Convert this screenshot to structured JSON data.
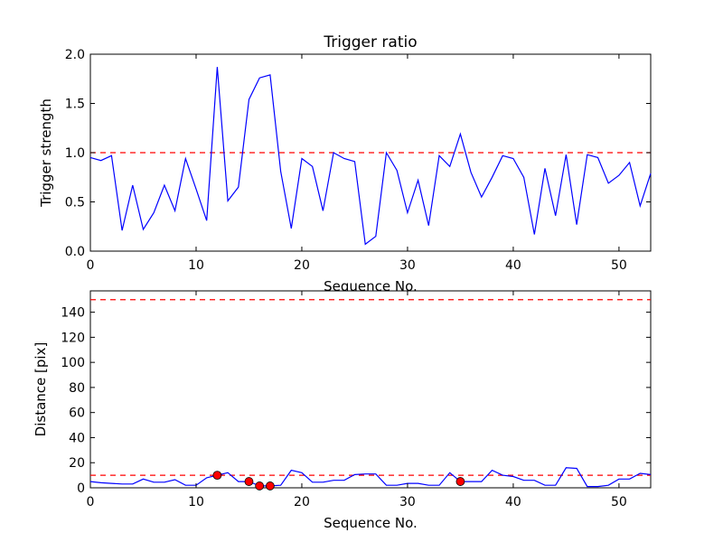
{
  "chart_data": [
    {
      "type": "line",
      "title": "Trigger ratio",
      "xlabel": "Sequence No.",
      "ylabel": "Trigger strength",
      "xlim": [
        0,
        53
      ],
      "ylim": [
        0,
        2.0
      ],
      "xticks": [
        "0",
        "10",
        "20",
        "30",
        "40",
        "50"
      ],
      "yticks": [
        "0.0",
        "0.5",
        "1.0",
        "1.5",
        "2.0"
      ],
      "threshold": 1.0,
      "series_color": "#0000ff",
      "threshold_color": "#ff0000",
      "x": [
        0,
        1,
        2,
        3,
        4,
        5,
        6,
        7,
        8,
        9,
        10,
        11,
        12,
        13,
        14,
        15,
        16,
        17,
        18,
        19,
        20,
        21,
        22,
        23,
        24,
        25,
        26,
        27,
        28,
        29,
        30,
        31,
        32,
        33,
        34,
        35,
        36,
        37,
        38,
        39,
        40,
        41,
        42,
        43,
        44,
        45,
        46,
        47,
        48,
        49,
        50,
        51,
        52,
        53
      ],
      "values": [
        0.95,
        0.92,
        0.97,
        0.21,
        0.67,
        0.22,
        0.39,
        0.67,
        0.41,
        0.94,
        0.63,
        0.31,
        1.87,
        0.51,
        0.65,
        1.54,
        1.76,
        1.79,
        0.81,
        0.23,
        0.94,
        0.86,
        0.41,
        1.0,
        0.94,
        0.91,
        0.07,
        0.15,
        1.0,
        0.82,
        0.39,
        0.72,
        0.26,
        0.97,
        0.86,
        1.19,
        0.8,
        0.55,
        0.75,
        0.97,
        0.94,
        0.75,
        0.17,
        0.84,
        0.36,
        0.98,
        0.27,
        0.98,
        0.95,
        0.69,
        0.77,
        0.9,
        0.46,
        0.79
      ]
    },
    {
      "type": "line",
      "title": "",
      "xlabel": "Sequence No.",
      "ylabel": "Distance [pix]",
      "xlim": [
        0,
        53
      ],
      "ylim": [
        0,
        157
      ],
      "xticks": [
        "0",
        "10",
        "20",
        "30",
        "40",
        "50"
      ],
      "yticks": [
        "0",
        "20",
        "40",
        "60",
        "80",
        "100",
        "120",
        "140"
      ],
      "thresholds": [
        10,
        150
      ],
      "series_color": "#0000ff",
      "threshold_color": "#ff0000",
      "marker_color": "#ff0000",
      "x": [
        0,
        1,
        2,
        3,
        4,
        5,
        6,
        7,
        8,
        9,
        10,
        11,
        12,
        13,
        14,
        15,
        16,
        17,
        18,
        19,
        20,
        21,
        22,
        23,
        24,
        25,
        26,
        27,
        28,
        29,
        30,
        31,
        32,
        33,
        34,
        35,
        36,
        37,
        38,
        39,
        40,
        41,
        42,
        43,
        44,
        45,
        46,
        47,
        48,
        49,
        50,
        51,
        52,
        53
      ],
      "values": [
        5,
        4,
        3.5,
        3,
        3,
        7,
        4.5,
        4.5,
        6.5,
        2,
        2,
        8,
        10,
        12,
        5,
        5,
        1.5,
        1.5,
        2,
        14,
        12,
        4.5,
        4.5,
        6,
        6,
        10.5,
        11,
        11,
        2,
        2,
        3.5,
        3.5,
        2,
        2,
        12,
        5,
        5,
        5,
        14,
        10,
        9,
        6,
        6,
        2,
        2,
        16,
        15.5,
        1,
        1,
        2,
        7,
        7,
        11.5,
        10.5
      ],
      "highlight_points": [
        {
          "x": 12,
          "y": 10
        },
        {
          "x": 15,
          "y": 5
        },
        {
          "x": 16,
          "y": 1.5
        },
        {
          "x": 17,
          "y": 1.5
        },
        {
          "x": 35,
          "y": 5
        }
      ]
    }
  ]
}
